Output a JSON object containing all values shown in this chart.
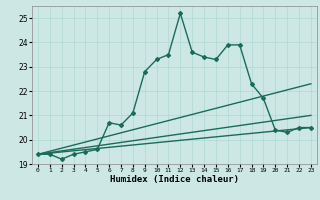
{
  "title": "",
  "xlabel": "Humidex (Indice chaleur)",
  "bg_color": "#cde8e4",
  "line_color": "#1a6b5a",
  "grid_color": "#b0d8d0",
  "xlim": [
    -0.5,
    23.5
  ],
  "ylim": [
    19,
    25.5
  ],
  "yticks": [
    19,
    20,
    21,
    22,
    23,
    24,
    25
  ],
  "xticks": [
    0,
    1,
    2,
    3,
    4,
    5,
    6,
    7,
    8,
    9,
    10,
    11,
    12,
    13,
    14,
    15,
    16,
    17,
    18,
    19,
    20,
    21,
    22,
    23
  ],
  "series": [
    {
      "x": [
        0,
        1,
        2,
        3,
        4,
        5,
        6,
        7,
        8,
        9,
        10,
        11,
        12,
        13,
        14,
        15,
        16,
        17,
        18,
        19,
        20,
        21,
        22,
        23
      ],
      "y": [
        19.4,
        19.4,
        19.2,
        19.4,
        19.5,
        19.6,
        20.7,
        20.6,
        21.1,
        22.8,
        23.3,
        23.5,
        25.2,
        23.6,
        23.4,
        23.3,
        23.9,
        23.9,
        22.3,
        21.7,
        20.4,
        20.3,
        20.5,
        20.5
      ],
      "marker": "D",
      "markersize": 2.0,
      "linewidth": 1.0
    },
    {
      "x": [
        0,
        23
      ],
      "y": [
        19.4,
        22.3
      ],
      "marker": null,
      "linewidth": 1.0
    },
    {
      "x": [
        0,
        23
      ],
      "y": [
        19.4,
        21.0
      ],
      "marker": null,
      "linewidth": 1.0
    },
    {
      "x": [
        0,
        23
      ],
      "y": [
        19.4,
        20.5
      ],
      "marker": null,
      "linewidth": 1.0
    }
  ]
}
